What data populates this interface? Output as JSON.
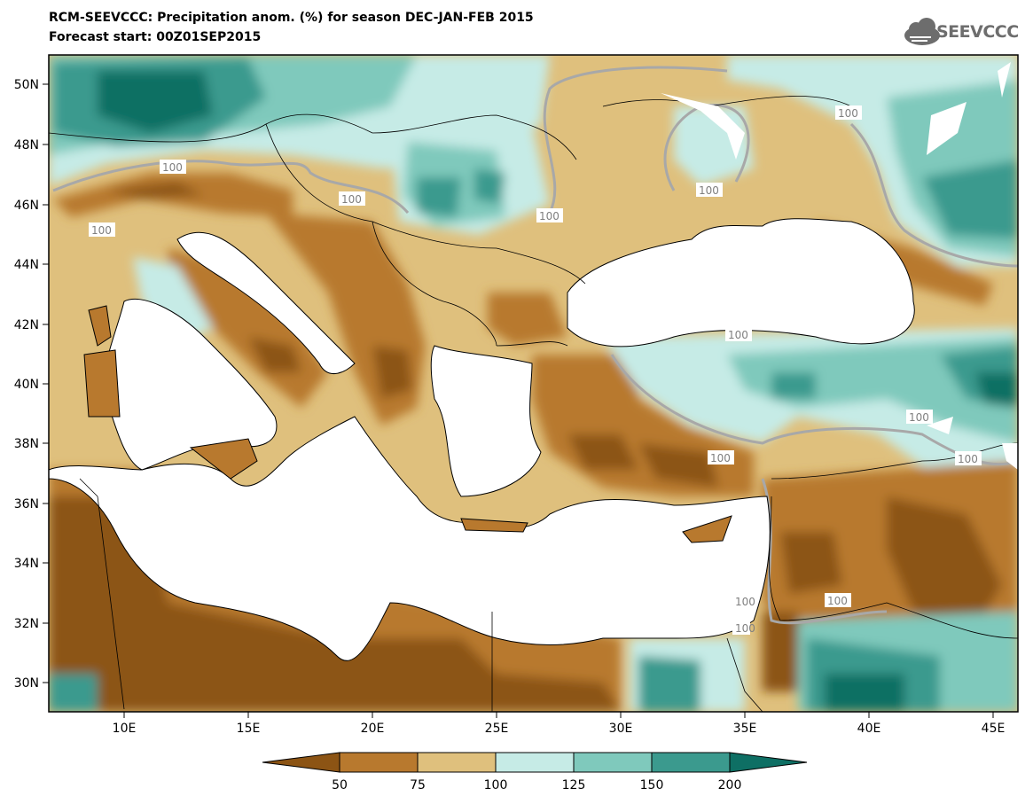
{
  "header": {
    "title": "RCM-SEEVCCC: Precipitation anom. (%) for season DEC-JAN-FEB 2015",
    "subtitle": "Forecast start: 00Z01SEP2015",
    "logo_text": "SEEVCCC"
  },
  "axes": {
    "lat_labels": [
      "50N",
      "48N",
      "46N",
      "44N",
      "42N",
      "40N",
      "38N",
      "36N",
      "34N",
      "32N",
      "30N"
    ],
    "lon_labels": [
      "10E",
      "15E",
      "20E",
      "25E",
      "30E",
      "35E",
      "40E",
      "45E"
    ]
  },
  "contour_labels": [
    "100",
    "100",
    "100",
    "100",
    "100",
    "100",
    "100",
    "100",
    "100",
    "100",
    "100",
    "100",
    "100"
  ],
  "colorbar": {
    "ticks": [
      "50",
      "75",
      "100",
      "125",
      "150",
      "200"
    ],
    "colors": [
      "#8c5414",
      "#b8792e",
      "#dfc07d",
      "#c6ebe6",
      "#7fc9bc",
      "#3b9a8e",
      "#0e6f64"
    ]
  },
  "colors": {
    "sea": "#ffffff",
    "contour_100": "#a8a8a8",
    "border": "#000000"
  }
}
